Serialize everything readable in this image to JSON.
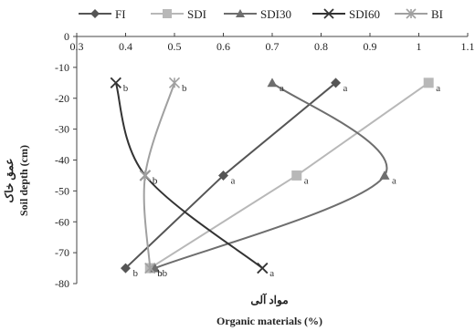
{
  "chart_data": {
    "type": "line",
    "title": "",
    "xlabel": "Organic materials (%)",
    "xlabel_fa": "مواد آلی",
    "ylabel": "Soil depth (cm)",
    "ylabel_fa": "عمق خاک",
    "xlim": [
      0.3,
      1.1
    ],
    "ylim": [
      -80,
      0
    ],
    "x_ticks": [
      "0.3",
      "0.4",
      "0.5",
      "0.6",
      "0.7",
      "0.8",
      "0.9",
      "1",
      "1.1"
    ],
    "y_ticks": [
      "0",
      "-10",
      "-20",
      "-30",
      "-40",
      "-50",
      "-60",
      "-70",
      "-80"
    ],
    "x_axis_position": "top",
    "grid": false,
    "legend_position": "top",
    "series": [
      {
        "name": "FI",
        "color": "#555555",
        "marker": "diamond",
        "x": [
          0.83,
          0.6,
          0.4
        ],
        "y": [
          -15,
          -45,
          -75
        ],
        "labels": [
          "a",
          "a",
          "b"
        ],
        "smooth": false
      },
      {
        "name": "SDI",
        "color": "#b8b8b8",
        "marker": "square",
        "x": [
          1.02,
          0.75,
          0.45
        ],
        "y": [
          -15,
          -45,
          -75
        ],
        "labels": [
          "a",
          "a",
          "b"
        ],
        "smooth": false
      },
      {
        "name": "SDI30",
        "color": "#6e6e6e",
        "marker": "triangle",
        "x": [
          0.7,
          0.93,
          0.46
        ],
        "y": [
          -15,
          -45,
          -75
        ],
        "labels": [
          "a",
          "a",
          "b"
        ],
        "smooth": true
      },
      {
        "name": "SDI60",
        "color": "#333333",
        "marker": "x",
        "x": [
          0.38,
          0.44,
          0.68
        ],
        "y": [
          -15,
          -45,
          -75
        ],
        "labels": [
          "b",
          "b",
          "a"
        ],
        "smooth": true
      },
      {
        "name": "BI",
        "color": "#a0a0a0",
        "marker": "star",
        "x": [
          0.5,
          0.44,
          0.45
        ],
        "y": [
          -15,
          -45,
          -75
        ],
        "labels": [
          "b",
          "b",
          "b"
        ],
        "smooth": true
      }
    ]
  }
}
